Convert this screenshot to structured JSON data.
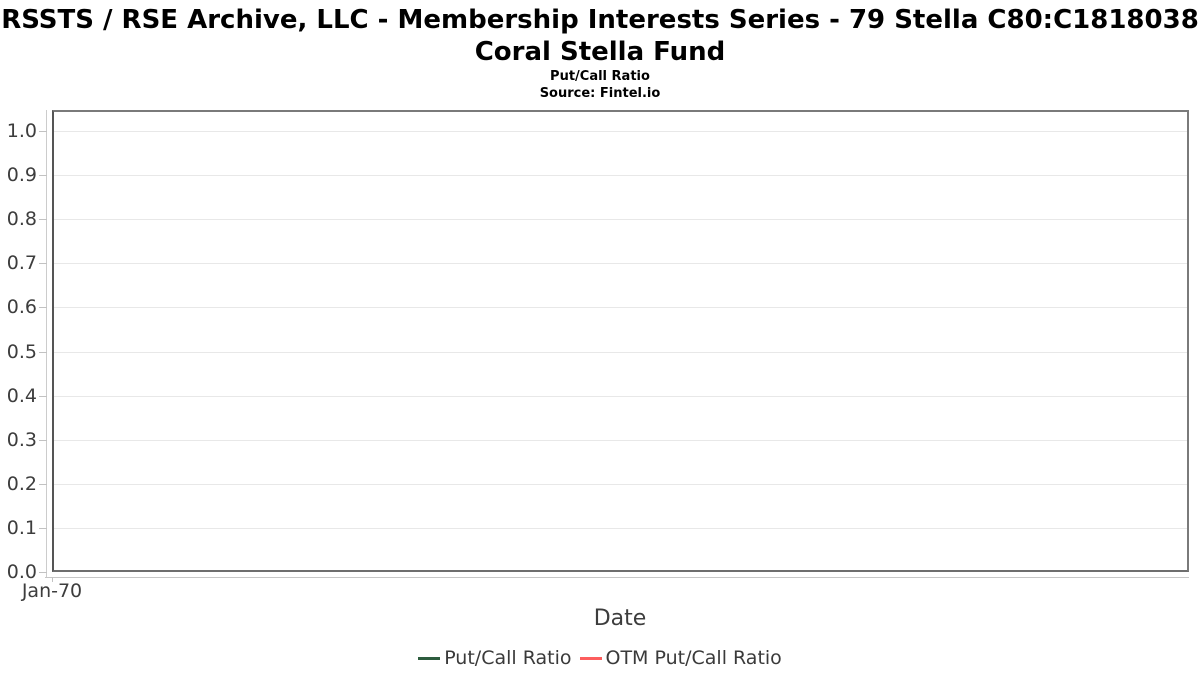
{
  "chart_data": {
    "type": "line",
    "title_line1": "RSSTS / RSE Archive, LLC - Membership Interests Series - 79 Stella C80:C1818038",
    "title_line2": "Coral Stella Fund",
    "subtitle": "Put/Call Ratio",
    "source": "Source: Fintel.io",
    "xlabel": "Date",
    "ylabel": "",
    "x_tick_labels": [
      "Jan-70"
    ],
    "y_tick_labels": [
      "0.0",
      "0.1",
      "0.2",
      "0.3",
      "0.4",
      "0.5",
      "0.6",
      "0.7",
      "0.8",
      "0.9",
      "1.0"
    ],
    "ylim": [
      0,
      1.05
    ],
    "grid": true,
    "legend_position": "bottom",
    "series": [
      {
        "name": "Put/Call Ratio",
        "color": "#2d5c3e",
        "x": [],
        "values": []
      },
      {
        "name": "OTM Put/Call Ratio",
        "color": "#fd5e5e",
        "x": [],
        "values": []
      }
    ],
    "colors": {
      "plot_border": "#7a7a7a",
      "gridline": "#e8e8e8",
      "axis_line": "#c6c6c6",
      "tick": "#c2c2c2",
      "tick_text": "#3d3d3d",
      "title_text": "#000000",
      "background": "#ffffff"
    }
  }
}
